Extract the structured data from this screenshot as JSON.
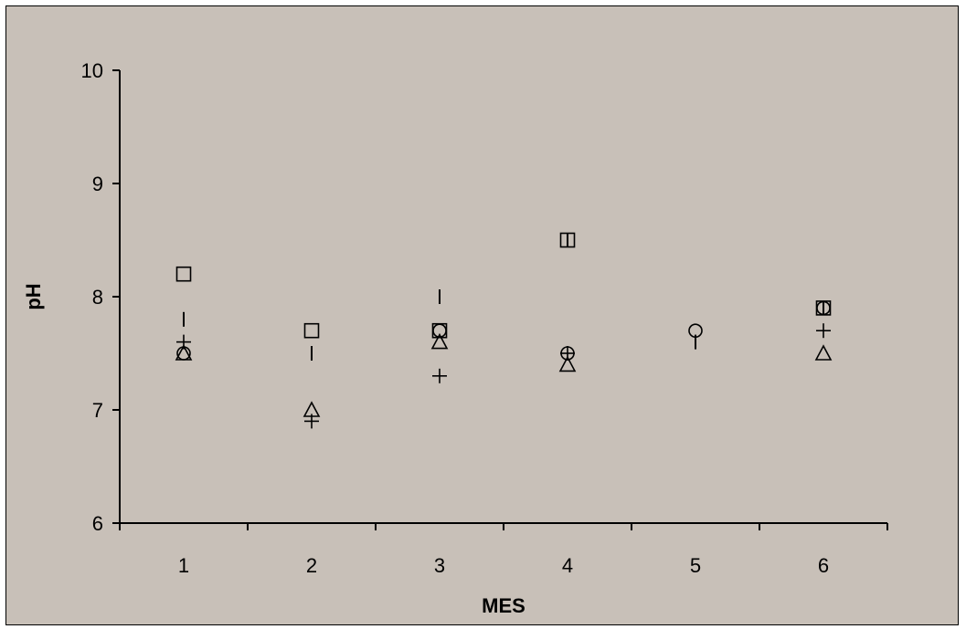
{
  "chart_data": {
    "type": "scatter",
    "title": "",
    "xlabel": "MES",
    "ylabel": "pH",
    "x_ticks": [
      "1",
      "2",
      "3",
      "4",
      "5",
      "6"
    ],
    "y_ticks": [
      "6",
      "7",
      "8",
      "9",
      "10"
    ],
    "xlim": [
      0.5,
      6.5
    ],
    "ylim": [
      6,
      10
    ],
    "grid": false,
    "background_color": "#c8c0b8",
    "marker_color": "#000000",
    "series": [
      {
        "marker": "square",
        "points": [
          [
            1,
            8.2
          ],
          [
            2,
            7.7
          ],
          [
            3,
            7.7
          ],
          [
            4,
            8.5
          ],
          [
            6,
            7.9
          ]
        ]
      },
      {
        "marker": "dash",
        "points": [
          [
            1,
            7.8
          ],
          [
            2,
            7.5
          ],
          [
            3,
            8.0
          ],
          [
            4,
            8.5
          ],
          [
            5,
            7.6
          ],
          [
            6,
            7.9
          ]
        ]
      },
      {
        "marker": "plus",
        "points": [
          [
            1,
            7.6
          ],
          [
            2,
            6.9
          ],
          [
            3,
            7.3
          ],
          [
            4,
            7.5
          ],
          [
            6,
            7.7
          ]
        ]
      },
      {
        "marker": "circle",
        "points": [
          [
            1,
            7.5
          ],
          [
            3,
            7.7
          ],
          [
            4,
            7.5
          ],
          [
            5,
            7.7
          ],
          [
            6,
            7.9
          ]
        ]
      },
      {
        "marker": "triangle",
        "points": [
          [
            1,
            7.5
          ],
          [
            2,
            7.0
          ],
          [
            3,
            7.6
          ],
          [
            4,
            7.4
          ],
          [
            6,
            7.5
          ]
        ]
      }
    ]
  }
}
